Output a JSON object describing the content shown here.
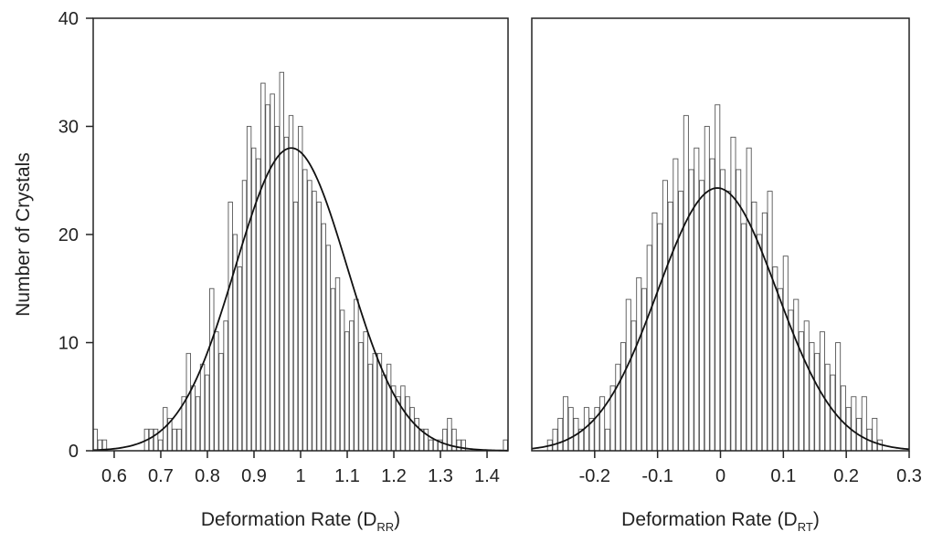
{
  "figure": {
    "ylabel": "Number of Crystals"
  },
  "chart_data": [
    {
      "type": "bar",
      "xlabel": "Deformation Rate (D",
      "xlabel_sub": "RR",
      "xlabel_end": ")",
      "ylabel": "Number of Crystals",
      "xlim": [
        0.555,
        1.445
      ],
      "ylim": [
        0,
        40
      ],
      "xticks": [
        "0.6",
        "0.7",
        "0.8",
        "0.9",
        "1",
        "1.1",
        "1.2",
        "1.3",
        "1.4"
      ],
      "yticks": [
        "0",
        "10",
        "20",
        "30",
        "40"
      ],
      "grid": false,
      "bins": {
        "start": 0.555,
        "width": 0.01,
        "counts": [
          2,
          1,
          1,
          0,
          0,
          0,
          0,
          0,
          0,
          0,
          0,
          2,
          2,
          2,
          1,
          4,
          3,
          2,
          2,
          5,
          9,
          6,
          5,
          8,
          7,
          15,
          11,
          9,
          12,
          23,
          20,
          17,
          25,
          30,
          28,
          27,
          34,
          32,
          33,
          30,
          35,
          29,
          31,
          23,
          30,
          26,
          25,
          24,
          23,
          21,
          19,
          15,
          16,
          13,
          11,
          12,
          14,
          10,
          11,
          8,
          9,
          9,
          7,
          8,
          6,
          5,
          6,
          5,
          4,
          3,
          2,
          2,
          1,
          1,
          1,
          2,
          3,
          2,
          1,
          1,
          0,
          0,
          0,
          0,
          0,
          0,
          0,
          0,
          1
        ]
      },
      "curve": {
        "kind": "gaussian",
        "mean": 0.98,
        "sd": 0.12,
        "peak": 28
      }
    },
    {
      "type": "bar",
      "xlabel": "Deformation Rate (D",
      "xlabel_sub": "RT",
      "xlabel_end": ")",
      "xlim": [
        -0.3,
        0.3
      ],
      "ylim": [
        0,
        40
      ],
      "xticks": [
        "-0.2",
        "-0.1",
        "0",
        "0.1",
        "0.2",
        "0.3"
      ],
      "grid": false,
      "bins": {
        "start": -0.3,
        "width": 0.00833,
        "counts": [
          0,
          0,
          0,
          1,
          2,
          3,
          5,
          4,
          3,
          2,
          4,
          3,
          4,
          5,
          2,
          6,
          8,
          10,
          14,
          12,
          16,
          15,
          19,
          22,
          21,
          25,
          23,
          27,
          24,
          31,
          26,
          28,
          25,
          30,
          27,
          32,
          26,
          24,
          29,
          26,
          21,
          28,
          23,
          20,
          22,
          24,
          17,
          15,
          18,
          13,
          14,
          11,
          12,
          10,
          9,
          11,
          8,
          7,
          10,
          6,
          4,
          5,
          3,
          5,
          2,
          3,
          1
        ]
      },
      "curve": {
        "kind": "gaussian",
        "mean": -0.005,
        "sd": 0.095,
        "peak": 24.3
      }
    }
  ]
}
